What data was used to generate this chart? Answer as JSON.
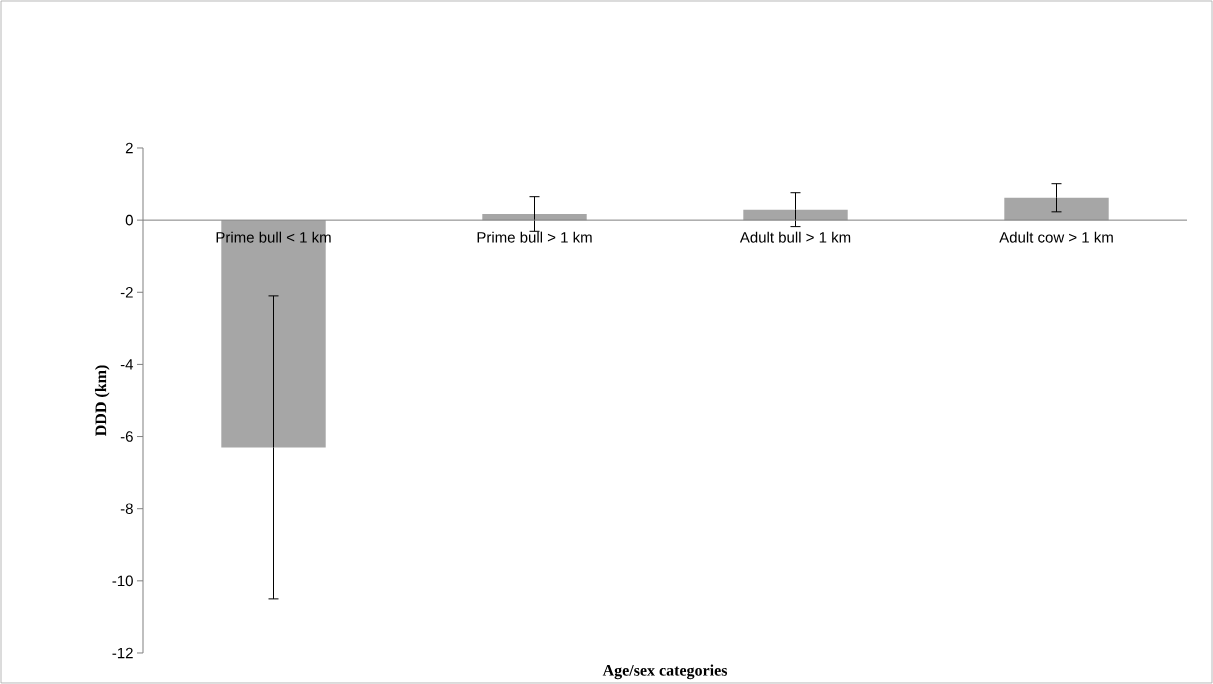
{
  "chart_data": {
    "type": "bar",
    "xlabel": "Age/sex categories",
    "ylabel": "DDD (km)",
    "categories": [
      "Prime bull < 1 km",
      "Prime bull > 1 km",
      "Adult bull > 1 km",
      "Adult cow > 1 km"
    ],
    "values": [
      -6.3,
      0.17,
      0.29,
      0.62
    ],
    "errors": [
      4.2,
      0.48,
      0.47,
      0.39
    ],
    "color": "#a6a6a6",
    "ylim": [
      -12,
      2
    ],
    "yticks": [
      -12,
      -10,
      -8,
      -6,
      -4,
      -2,
      0,
      2
    ]
  }
}
